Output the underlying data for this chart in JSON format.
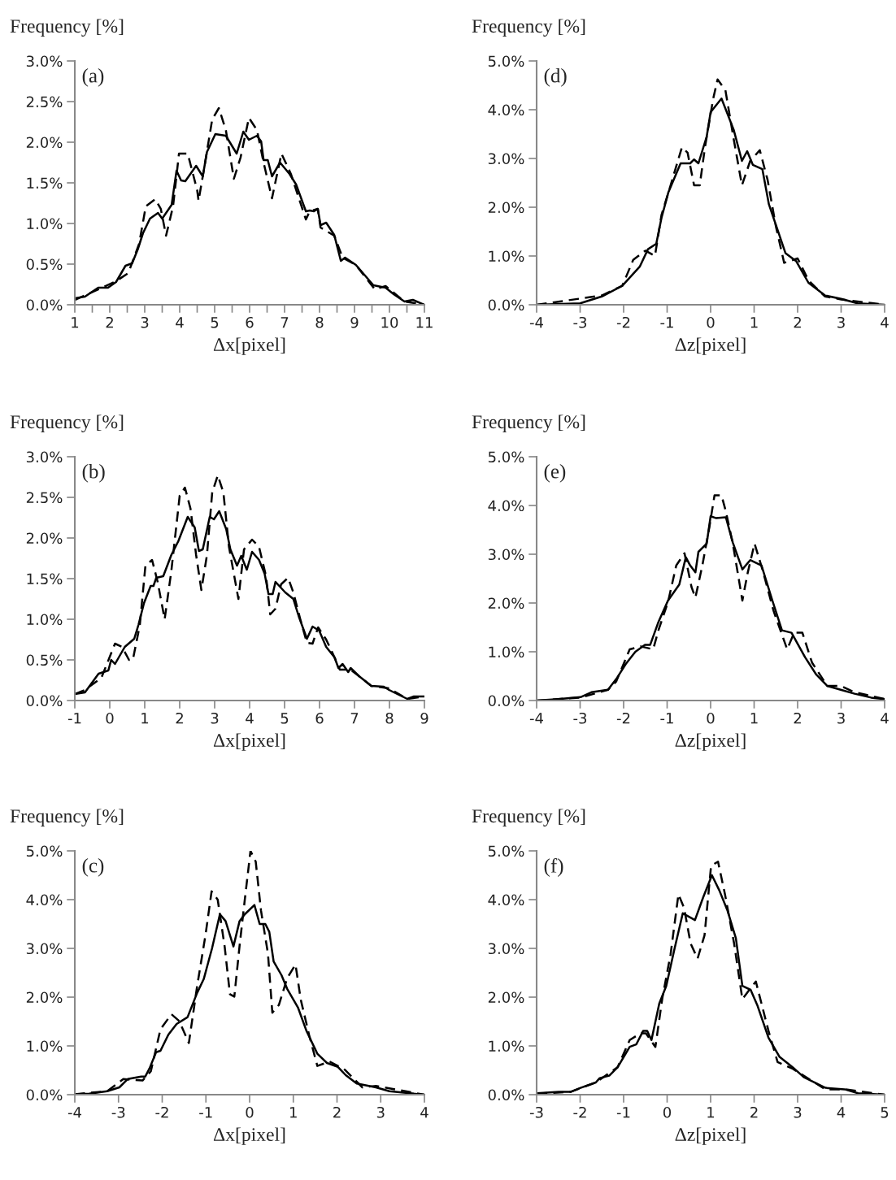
{
  "chart_data": [
    {
      "type": "line",
      "annotations": [
        "(a)"
      ],
      "xlabel": "Δx[pixel]",
      "ylabel": "Frequency [%]",
      "grid": false,
      "xlim": [
        1,
        11
      ],
      "ylim": [
        0,
        3.0
      ],
      "xticks": [
        1,
        {
          "value": 1.5,
          "label": null
        },
        2,
        {
          "value": 2.5,
          "label": null
        },
        3,
        {
          "value": 3.5,
          "label": null
        },
        4,
        {
          "value": 4.5,
          "label": null
        },
        5,
        {
          "value": 5.5,
          "label": null
        },
        6,
        {
          "value": 6.5,
          "label": null
        },
        7,
        {
          "value": 7.5,
          "label": null
        },
        8,
        {
          "value": 8.5,
          "label": null
        },
        9,
        {
          "value": 9.5,
          "label": null
        },
        10,
        {
          "value": 10.5,
          "label": null
        },
        11
      ],
      "yticks": [
        {
          "value": 0,
          "label": "0.0%"
        },
        {
          "value": 0.5,
          "label": "0.5%"
        },
        {
          "value": 1.0,
          "label": "1.0%"
        },
        {
          "value": 1.5,
          "label": "1.5%"
        },
        {
          "value": 2.0,
          "label": "2.0%"
        },
        {
          "value": 2.5,
          "label": "2.5%"
        },
        {
          "value": 3.0,
          "label": "3.0%"
        }
      ],
      "series": [
        {
          "color": "#000000",
          "line_style": "solid",
          "x": [
            1.0,
            1.29,
            1.67,
            1.95,
            2.18,
            2.45,
            2.64,
            2.8,
            2.95,
            3.15,
            3.38,
            3.5,
            3.77,
            3.91,
            4.04,
            4.16,
            4.47,
            4.66,
            4.78,
            5.02,
            5.32,
            5.63,
            5.82,
            5.98,
            6.21,
            6.33,
            6.4,
            6.52,
            6.64,
            6.87,
            7.14,
            7.33,
            7.61,
            7.72,
            7.84,
            7.95,
            8.03,
            8.19,
            8.42,
            8.61,
            8.73,
            9.04,
            9.54,
            9.89,
            10.12,
            10.43,
            10.67,
            11.0
          ],
          "values": [
            0.08,
            0.1,
            0.21,
            0.21,
            0.28,
            0.48,
            0.51,
            0.68,
            0.88,
            1.06,
            1.13,
            1.06,
            1.23,
            1.65,
            1.53,
            1.52,
            1.71,
            1.58,
            1.88,
            2.1,
            2.08,
            1.86,
            2.13,
            2.03,
            2.08,
            2.01,
            1.78,
            1.78,
            1.58,
            1.75,
            1.61,
            1.48,
            1.15,
            1.16,
            1.15,
            1.18,
            0.98,
            1.01,
            0.86,
            0.54,
            0.58,
            0.49,
            0.24,
            0.21,
            0.13,
            0.04,
            0.06,
            0.0
          ]
        },
        {
          "color": "#000000",
          "line_style": "dashed",
          "x": [
            1.0,
            1.67,
            2.18,
            2.53,
            2.84,
            3.03,
            3.3,
            3.46,
            3.61,
            3.81,
            3.98,
            4.23,
            4.5,
            4.54,
            4.7,
            4.93,
            5.12,
            5.32,
            5.55,
            5.74,
            5.98,
            6.21,
            6.4,
            6.64,
            6.91,
            7.18,
            7.61,
            7.72,
            7.95,
            8.03,
            8.42,
            8.66,
            9.04,
            9.58,
            9.89,
            10.43,
            11.0
          ],
          "values": [
            0.06,
            0.19,
            0.29,
            0.39,
            0.75,
            1.21,
            1.3,
            1.18,
            0.85,
            1.21,
            1.86,
            1.86,
            1.41,
            1.28,
            1.68,
            2.28,
            2.42,
            2.15,
            1.55,
            1.81,
            2.3,
            2.15,
            1.75,
            1.31,
            1.86,
            1.61,
            1.05,
            1.15,
            1.18,
            0.95,
            0.85,
            0.58,
            0.49,
            0.19,
            0.23,
            0.04,
            0.0
          ]
        }
      ]
    },
    {
      "type": "line",
      "annotations": [
        "(d)"
      ],
      "xlabel": "Δz[pixel]",
      "ylabel": "Frequency [%]",
      "grid": false,
      "xlim": [
        -4,
        4
      ],
      "ylim": [
        0,
        5.0
      ],
      "xticks": [
        -4,
        -3,
        -2,
        -1,
        0,
        1,
        2,
        3,
        4
      ],
      "yticks": [
        {
          "value": 0,
          "label": "0.0%"
        },
        {
          "value": 1.0,
          "label": "1.0%"
        },
        {
          "value": 2.0,
          "label": "2.0%"
        },
        {
          "value": 3.0,
          "label": "3.0%"
        },
        {
          "value": 4.0,
          "label": "4.0%"
        },
        {
          "value": 5.0,
          "label": "5.0%"
        }
      ],
      "series": [
        {
          "color": "#000000",
          "line_style": "solid",
          "x": [
            -4.0,
            -3.0,
            -2.5,
            -2.03,
            -1.63,
            -1.44,
            -1.25,
            -1.13,
            -0.97,
            -0.69,
            -0.47,
            -0.38,
            -0.28,
            -0.09,
            0.0,
            0.25,
            0.53,
            0.72,
            0.84,
            0.97,
            1.19,
            1.34,
            1.53,
            1.72,
            1.97,
            2.25,
            2.63,
            3.0,
            3.38,
            4.0
          ],
          "values": [
            0.0,
            0.03,
            0.17,
            0.39,
            0.78,
            1.14,
            1.25,
            1.78,
            2.31,
            2.9,
            2.9,
            2.98,
            2.9,
            3.45,
            3.95,
            4.23,
            3.59,
            2.95,
            3.15,
            2.87,
            2.78,
            2.06,
            1.56,
            1.06,
            0.89,
            0.45,
            0.19,
            0.12,
            0.03,
            0.0
          ]
        },
        {
          "color": "#000000",
          "line_style": "dashed",
          "x": [
            -4.0,
            -2.5,
            -2.03,
            -1.78,
            -1.5,
            -1.28,
            -1.13,
            -0.94,
            -0.66,
            -0.53,
            -0.38,
            -0.25,
            -0.13,
            0.06,
            0.16,
            0.34,
            0.53,
            0.72,
            0.91,
            1.13,
            1.31,
            1.5,
            1.69,
            2.0,
            2.25,
            2.63,
            3.0,
            4.0
          ],
          "values": [
            0.0,
            0.19,
            0.39,
            0.92,
            1.11,
            1.0,
            1.84,
            2.39,
            3.23,
            3.12,
            2.45,
            2.45,
            3.23,
            4.23,
            4.62,
            4.4,
            3.4,
            2.45,
            2.95,
            3.17,
            2.56,
            1.61,
            0.86,
            0.95,
            0.5,
            0.17,
            0.11,
            0.0
          ]
        }
      ]
    },
    {
      "type": "line",
      "annotations": [
        "(b)"
      ],
      "xlabel": "Δx[pixel]",
      "ylabel": "Frequency [%]",
      "grid": false,
      "xlim": [
        -1,
        9
      ],
      "ylim": [
        0,
        3.0
      ],
      "xticks": [
        -1,
        0,
        1,
        2,
        3,
        4,
        5,
        6,
        7,
        8,
        9
      ],
      "yticks": [
        {
          "value": 0,
          "label": "0.0%"
        },
        {
          "value": 0.5,
          "label": "0.5%"
        },
        {
          "value": 1.0,
          "label": "1.0%"
        },
        {
          "value": 1.5,
          "label": "1.5%"
        },
        {
          "value": 2.0,
          "label": "2.0%"
        },
        {
          "value": 2.5,
          "label": "2.5%"
        },
        {
          "value": 3.0,
          "label": "3.0%"
        }
      ],
      "series": [
        {
          "color": "#000000",
          "line_style": "solid",
          "x": [
            -1.0,
            -0.71,
            -0.32,
            -0.04,
            0.04,
            0.15,
            0.43,
            0.7,
            0.82,
            0.98,
            1.17,
            1.25,
            1.33,
            1.53,
            1.76,
            1.96,
            2.23,
            2.43,
            2.55,
            2.66,
            2.86,
            2.98,
            3.13,
            3.33,
            3.45,
            3.64,
            3.76,
            3.92,
            4.07,
            4.27,
            4.43,
            4.54,
            4.66,
            4.74,
            5.02,
            5.25,
            5.41,
            5.64,
            5.8,
            5.99,
            6.19,
            6.43,
            6.54,
            6.66,
            6.82,
            6.89,
            7.13,
            7.48,
            7.84,
            7.99,
            8.27,
            8.51,
            8.7,
            9.0
          ],
          "values": [
            0.08,
            0.1,
            0.33,
            0.37,
            0.5,
            0.45,
            0.66,
            0.76,
            0.93,
            1.2,
            1.41,
            1.41,
            1.51,
            1.53,
            1.79,
            1.96,
            2.26,
            2.13,
            1.84,
            1.86,
            2.26,
            2.23,
            2.33,
            2.11,
            1.86,
            1.66,
            1.78,
            1.61,
            1.83,
            1.73,
            1.56,
            1.31,
            1.31,
            1.46,
            1.33,
            1.25,
            1.03,
            0.76,
            0.91,
            0.86,
            0.66,
            0.53,
            0.4,
            0.45,
            0.35,
            0.4,
            0.3,
            0.18,
            0.17,
            0.13,
            0.07,
            0.02,
            0.05,
            0.05
          ]
        },
        {
          "color": "#000000",
          "line_style": "dashed",
          "x": [
            -1.0,
            -0.71,
            -0.24,
            0.15,
            0.35,
            0.55,
            0.66,
            0.86,
            1.02,
            1.21,
            1.37,
            1.57,
            1.76,
            2.0,
            2.15,
            2.31,
            2.47,
            2.62,
            2.78,
            2.93,
            3.09,
            3.25,
            3.41,
            3.68,
            3.84,
            4.07,
            4.27,
            4.47,
            4.59,
            4.74,
            4.9,
            5.1,
            5.25,
            5.45,
            5.64,
            5.8,
            5.96,
            6.19,
            6.43,
            6.58,
            6.89,
            7.48,
            7.99,
            8.51,
            9.0
          ],
          "values": [
            0.08,
            0.13,
            0.28,
            0.7,
            0.66,
            0.5,
            0.5,
            0.93,
            1.66,
            1.73,
            1.46,
            1.0,
            1.59,
            2.52,
            2.62,
            2.36,
            1.79,
            1.36,
            1.79,
            2.56,
            2.77,
            2.56,
            1.89,
            1.25,
            1.86,
            1.98,
            1.89,
            1.53,
            1.06,
            1.13,
            1.43,
            1.51,
            1.33,
            1.0,
            0.71,
            0.7,
            0.9,
            0.75,
            0.53,
            0.38,
            0.38,
            0.18,
            0.15,
            0.02,
            0.05
          ]
        }
      ]
    },
    {
      "type": "line",
      "annotations": [
        "(e)"
      ],
      "xlabel": "Δz[pixel]",
      "ylabel": "Frequency [%]",
      "grid": false,
      "xlim": [
        -4,
        4
      ],
      "ylim": [
        0,
        5.0
      ],
      "xticks": [
        -4,
        -3,
        -2,
        -1,
        0,
        1,
        2,
        3,
        4
      ],
      "yticks": [
        {
          "value": 0,
          "label": "0.0%"
        },
        {
          "value": 1.0,
          "label": "1.0%"
        },
        {
          "value": 2.0,
          "label": "2.0%"
        },
        {
          "value": 3.0,
          "label": "3.0%"
        },
        {
          "value": 4.0,
          "label": "4.0%"
        },
        {
          "value": 5.0,
          "label": "5.0%"
        }
      ],
      "series": [
        {
          "color": "#000000",
          "line_style": "solid",
          "x": [
            -4.0,
            -3.5,
            -2.99,
            -2.74,
            -2.36,
            -2.17,
            -1.95,
            -1.73,
            -1.51,
            -1.39,
            -1.2,
            -0.98,
            -0.72,
            -0.57,
            -0.47,
            -0.35,
            -0.28,
            -0.09,
            0.0,
            0.13,
            0.35,
            0.51,
            0.73,
            0.91,
            1.17,
            1.42,
            1.64,
            1.86,
            2.17,
            2.43,
            2.68,
            2.99,
            3.31,
            3.69,
            4.0
          ],
          "values": [
            0.0,
            0.03,
            0.07,
            0.17,
            0.22,
            0.44,
            0.75,
            1.0,
            1.14,
            1.14,
            1.61,
            2.05,
            2.38,
            2.94,
            2.77,
            2.63,
            3.05,
            3.22,
            3.78,
            3.74,
            3.76,
            3.24,
            2.69,
            2.88,
            2.77,
            2.05,
            1.44,
            1.39,
            0.89,
            0.53,
            0.3,
            0.22,
            0.14,
            0.06,
            0.03
          ]
        },
        {
          "color": "#000000",
          "line_style": "dashed",
          "x": [
            -4.0,
            -2.99,
            -2.36,
            -2.17,
            -1.86,
            -1.61,
            -1.32,
            -1.2,
            -0.98,
            -0.79,
            -0.6,
            -0.44,
            -0.35,
            -0.19,
            -0.03,
            0.09,
            0.25,
            0.35,
            0.51,
            0.73,
            0.85,
            1.01,
            1.2,
            1.45,
            1.76,
            1.92,
            2.11,
            2.33,
            2.68,
            2.99,
            3.31,
            4.0
          ],
          "values": [
            0.0,
            0.06,
            0.22,
            0.39,
            1.05,
            1.11,
            1.05,
            1.44,
            2.02,
            2.77,
            3.02,
            2.33,
            2.11,
            2.77,
            3.55,
            4.21,
            4.21,
            3.88,
            3.22,
            2.05,
            2.61,
            3.22,
            2.66,
            1.83,
            1.05,
            1.39,
            1.39,
            0.78,
            0.3,
            0.3,
            0.17,
            0.03
          ]
        }
      ]
    },
    {
      "type": "line",
      "annotations": [
        "(c)"
      ],
      "xlabel": "Δx[pixel]",
      "ylabel": "Frequency [%]",
      "grid": false,
      "xlim": [
        -4,
        4
      ],
      "ylim": [
        0,
        5.0
      ],
      "xticks": [
        -4,
        -3,
        -2,
        -1,
        0,
        1,
        2,
        3,
        4
      ],
      "yticks": [
        {
          "value": 0,
          "label": "0.0%"
        },
        {
          "value": 1.0,
          "label": "1.0%"
        },
        {
          "value": 2.0,
          "label": "2.0%"
        },
        {
          "value": 3.0,
          "label": "3.0%"
        },
        {
          "value": 4.0,
          "label": "4.0%"
        },
        {
          "value": 5.0,
          "label": "5.0%"
        }
      ],
      "series": [
        {
          "color": "#000000",
          "line_style": "solid",
          "x": [
            -4.0,
            -3.67,
            -3.26,
            -2.98,
            -2.79,
            -2.48,
            -2.39,
            -2.29,
            -2.14,
            -2.04,
            -1.86,
            -1.67,
            -1.42,
            -1.2,
            -1.05,
            -0.86,
            -0.68,
            -0.55,
            -0.37,
            -0.23,
            -0.11,
            0.11,
            0.23,
            0.36,
            0.45,
            0.55,
            0.73,
            0.86,
            1.11,
            1.3,
            1.55,
            1.77,
            2.02,
            2.2,
            2.45,
            2.89,
            3.2,
            4.0
          ],
          "values": [
            0.01,
            0.02,
            0.07,
            0.15,
            0.32,
            0.37,
            0.37,
            0.54,
            0.87,
            0.9,
            1.23,
            1.45,
            1.59,
            2.09,
            2.37,
            3.0,
            3.7,
            3.56,
            3.04,
            3.56,
            3.7,
            3.89,
            3.5,
            3.5,
            3.34,
            2.73,
            2.45,
            2.17,
            1.78,
            1.31,
            0.84,
            0.65,
            0.57,
            0.4,
            0.23,
            0.15,
            0.07,
            0.0
          ]
        },
        {
          "color": "#000000",
          "line_style": "dashed",
          "x": [
            -4.0,
            -3.26,
            -2.89,
            -2.45,
            -2.26,
            -2.04,
            -1.79,
            -1.61,
            -1.39,
            -1.2,
            -1.01,
            -0.87,
            -0.73,
            -0.57,
            -0.45,
            -0.35,
            -0.23,
            -0.11,
            0.02,
            0.14,
            0.26,
            0.42,
            0.52,
            0.67,
            0.86,
            1.05,
            1.17,
            1.36,
            1.55,
            1.83,
            2.18,
            2.58,
            2.89,
            4.0
          ],
          "values": [
            0.01,
            0.07,
            0.32,
            0.29,
            0.48,
            1.34,
            1.65,
            1.51,
            1.06,
            2.23,
            3.27,
            4.17,
            4.0,
            3.03,
            2.06,
            2.01,
            3.05,
            4.0,
            5.0,
            4.78,
            3.78,
            2.89,
            1.68,
            1.84,
            2.39,
            2.67,
            1.95,
            1.23,
            0.59,
            0.68,
            0.51,
            0.15,
            0.18,
            0.0
          ]
        }
      ]
    },
    {
      "type": "line",
      "annotations": [
        "(f)"
      ],
      "xlabel": "Δz[pixel]",
      "ylabel": "Frequency [%]",
      "grid": false,
      "xlim": [
        -3,
        5
      ],
      "ylim": [
        0,
        5.0
      ],
      "xticks": [
        -3,
        -2,
        -1,
        0,
        1,
        2,
        3,
        4,
        5
      ],
      "yticks": [
        {
          "value": 0,
          "label": "0.0%"
        },
        {
          "value": 1.0,
          "label": "1.0%"
        },
        {
          "value": 2.0,
          "label": "2.0%"
        },
        {
          "value": 3.0,
          "label": "3.0%"
        },
        {
          "value": 4.0,
          "label": "4.0%"
        },
        {
          "value": 5.0,
          "label": "5.0%"
        }
      ],
      "series": [
        {
          "color": "#000000",
          "line_style": "solid",
          "x": [
            -2.99,
            -2.49,
            -2.21,
            -1.99,
            -1.64,
            -1.55,
            -1.33,
            -1.14,
            -0.86,
            -0.71,
            -0.55,
            -0.46,
            -0.36,
            -0.18,
            -0.02,
            0.17,
            0.36,
            0.64,
            0.83,
            1.03,
            1.2,
            1.39,
            1.58,
            1.73,
            1.92,
            2.08,
            2.33,
            2.58,
            2.89,
            3.14,
            3.64,
            4.08,
            4.39,
            5.0
          ],
          "values": [
            0.03,
            0.06,
            0.06,
            0.14,
            0.25,
            0.34,
            0.39,
            0.56,
            0.98,
            1.03,
            1.31,
            1.31,
            1.12,
            1.87,
            2.23,
            2.99,
            3.72,
            3.58,
            4.05,
            4.5,
            4.19,
            3.77,
            3.21,
            2.23,
            2.15,
            1.82,
            1.17,
            0.78,
            0.56,
            0.36,
            0.14,
            0.11,
            0.03,
            0.0
          ]
        },
        {
          "color": "#000000",
          "line_style": "dashed",
          "x": [
            -2.99,
            -2.21,
            -1.64,
            -1.14,
            -0.86,
            -0.61,
            -0.49,
            -0.27,
            -0.11,
            0.08,
            0.26,
            0.39,
            0.54,
            0.7,
            0.86,
            1.01,
            1.17,
            1.33,
            1.54,
            1.73,
            1.89,
            2.04,
            2.33,
            2.54,
            2.89,
            3.64,
            4.08,
            5.0
          ],
          "values": [
            0.02,
            0.06,
            0.25,
            0.56,
            1.12,
            1.26,
            1.26,
            0.98,
            1.98,
            2.88,
            4.11,
            3.83,
            3.1,
            2.79,
            3.27,
            4.69,
            4.78,
            4.11,
            3.1,
            1.96,
            2.15,
            2.32,
            1.31,
            0.67,
            0.53,
            0.11,
            0.11,
            0.0
          ]
        }
      ]
    }
  ]
}
